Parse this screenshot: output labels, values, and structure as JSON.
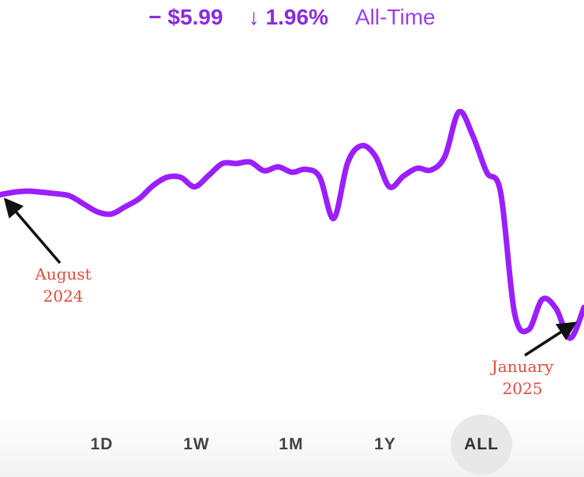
{
  "header": {
    "change": "− $5.99",
    "arrow_icon": "down-arrow-icon",
    "arrow_glyph": "↓",
    "percent": "1.96%",
    "period": "All-Time"
  },
  "colors": {
    "accent": "#8a2be2",
    "line": "#9b1eff",
    "annotation": "#e64a3a"
  },
  "annotations": {
    "start": [
      "August",
      "2024"
    ],
    "end": [
      "January",
      "2025"
    ]
  },
  "range_selector": {
    "options": [
      "1D",
      "1W",
      "1M",
      "1Y",
      "ALL"
    ],
    "selected": "ALL"
  },
  "chart_data": {
    "type": "line",
    "title": "",
    "xlabel": "",
    "ylabel": "",
    "x_start": "August 2024",
    "x_end": "January 2025",
    "grid": false,
    "legend": "none",
    "ylim": [
      0,
      100
    ],
    "series": [
      {
        "values": [
          64,
          64.7,
          65,
          64.7,
          64.3,
          63.7,
          61.5,
          59.3,
          58.7,
          60.7,
          62.9,
          66.5,
          68.8,
          68.8,
          66.2,
          69.3,
          72.6,
          72.6,
          73,
          70.6,
          71.7,
          70.2,
          71,
          68.8,
          57.5,
          72.8,
          77.5,
          74.6,
          66.2,
          69.1,
          71.3,
          70.8,
          74.6,
          86.8,
          80.3,
          70.2,
          64.7,
          31.5,
          26.8,
          35.2,
          32.6,
          24.5,
          33
        ]
      }
    ]
  }
}
